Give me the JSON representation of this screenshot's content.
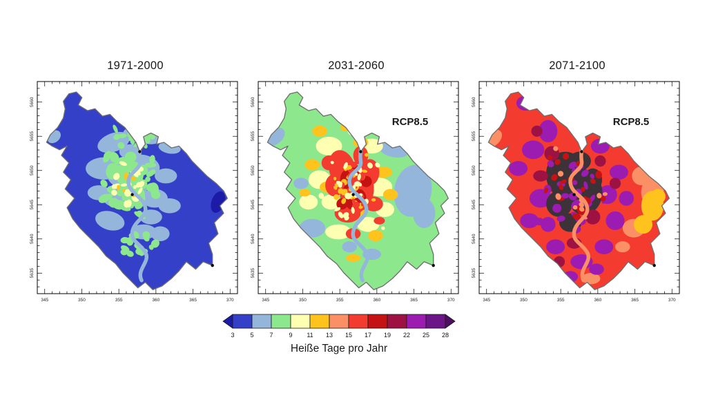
{
  "figure": {
    "background": "#ffffff",
    "panels": [
      {
        "title": "1971-2000",
        "annotation": "",
        "base_bin": "0",
        "river_bin": "1"
      },
      {
        "title": "2031-2060",
        "annotation": "RCP8.5",
        "base_bin": "2",
        "river_bin": "1"
      },
      {
        "title": "2071-2100",
        "annotation": "RCP8.5",
        "base_bin": "6",
        "river_bin": "5"
      }
    ],
    "axes": {
      "x_tick_labels": [
        "345",
        "350",
        "355",
        "360",
        "365",
        "370"
      ],
      "y_tick_labels": [
        "5635",
        "5640",
        "5645",
        "5650",
        "5655",
        "5660"
      ]
    },
    "colorbar": {
      "label": "Heiße Tage pro Jahr",
      "tick_labels": [
        "3",
        "5",
        "7",
        "9",
        "11",
        "13",
        "15",
        "17",
        "19",
        "22",
        "25",
        "28"
      ]
    },
    "colors": {
      "under": "#1b1ba8",
      "bins": [
        "#3540c8",
        "#95b6db",
        "#8de88d",
        "#ffffb2",
        "#ffc31e",
        "#fb8f66",
        "#f43b30",
        "#c51212",
        "#9d1243",
        "#9c1cb2",
        "#6c1587"
      ],
      "over": "#4e0f62",
      "core": "#3c3237",
      "boundary": "#6e6e6e",
      "frame": "#000000",
      "dot": "#000000",
      "tick_text": "#222222",
      "annotation_text": "#1a1a1a"
    }
  },
  "chart_data": {
    "type": "heatmap",
    "title": "Heiße Tage pro Jahr",
    "unit": "hot days per year",
    "region": "city map (UTM km coordinates)",
    "panels": [
      {
        "period": "1971-2000",
        "scenario": null,
        "dominant_range_days": "3-9",
        "description": "mostly 3-5 days, patches of 5-9, few 9-13 spots in center"
      },
      {
        "period": "2031-2060",
        "scenario": "RCP8.5",
        "dominant_range_days": "7-19",
        "description": "mostly 7-9 days, 9-15 ring, 15-19 clusters in city center, 5-7 in east forest"
      },
      {
        "period": "2071-2100",
        "scenario": "RCP8.5",
        "dominant_range_days": "15-28",
        "description": "mostly 15-19 days, 22-25 patches, >28 dark core in center, 11-15 in east"
      }
    ],
    "legend_bin_edges": [
      3,
      5,
      7,
      9,
      11,
      13,
      15,
      17,
      19,
      22,
      25,
      28
    ],
    "legend_has_underflow_arrow": true,
    "legend_has_overflow_arrow": true,
    "x_axis": {
      "ticks": [
        345,
        350,
        355,
        360,
        365,
        370
      ],
      "range": [
        344,
        371
      ]
    },
    "y_axis": {
      "ticks": [
        5635,
        5640,
        5645,
        5650,
        5655,
        5660
      ],
      "range": [
        5632,
        5663
      ]
    }
  }
}
